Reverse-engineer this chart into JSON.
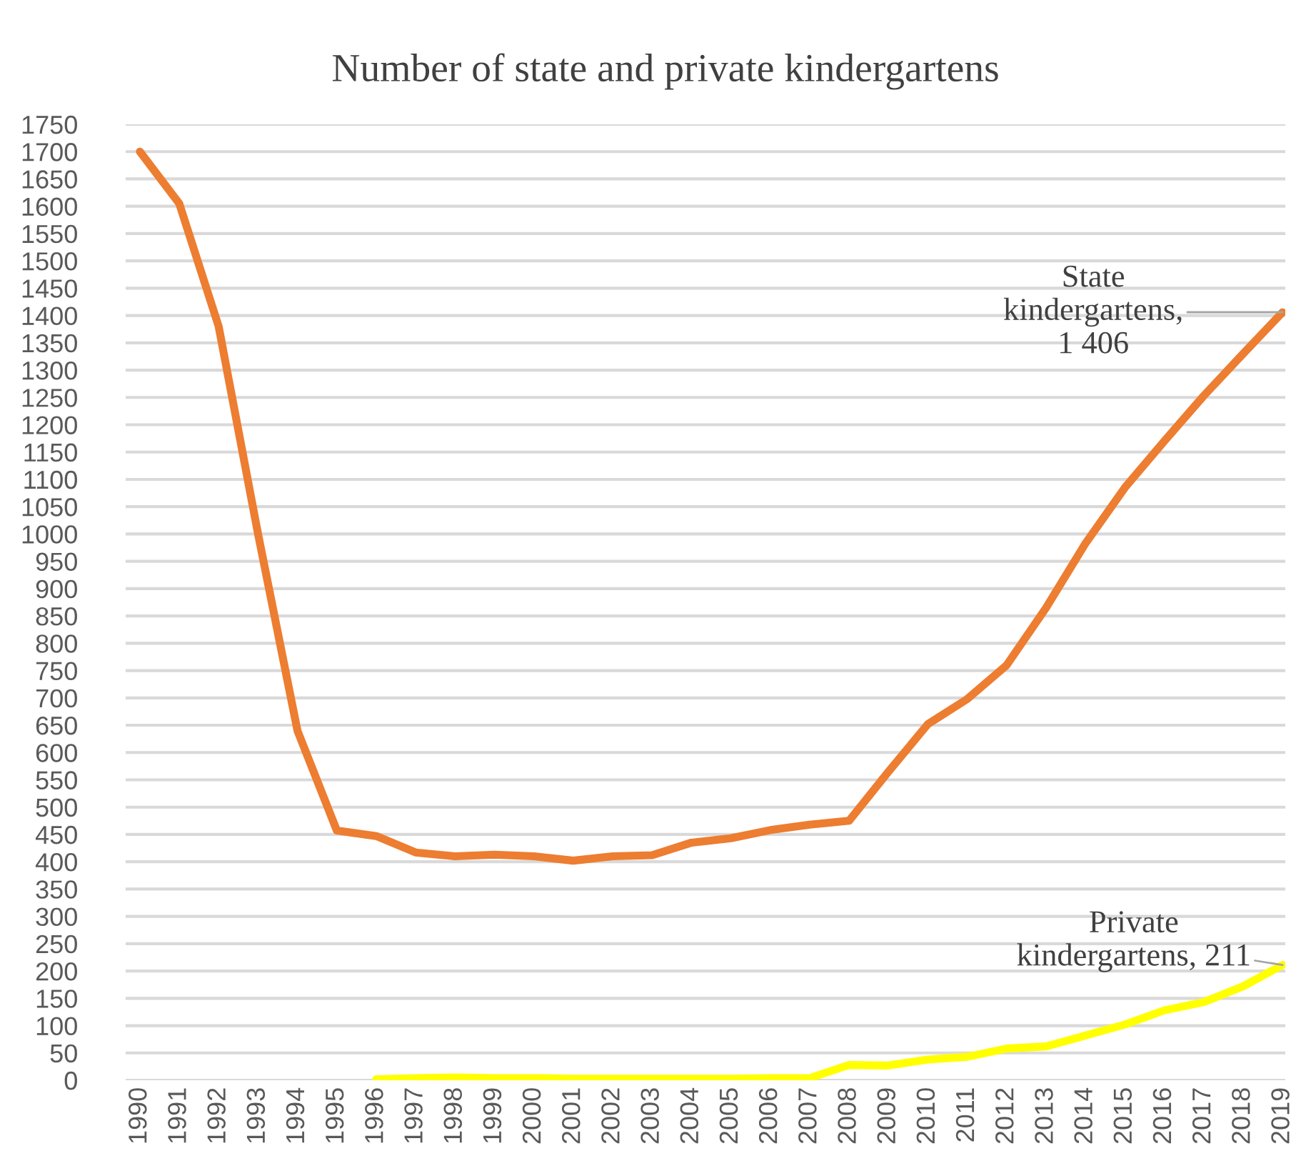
{
  "chart_data": {
    "type": "line",
    "title": "Number of state and private kindergartens",
    "categories": [
      "1990",
      "1991",
      "1992",
      "1993",
      "1994",
      "1995",
      "1996",
      "1997",
      "1998",
      "1999",
      "2000",
      "2001",
      "2002",
      "2003",
      "2004",
      "2005",
      "2006",
      "2007",
      "2008",
      "2009",
      "2010",
      "2011",
      "2012",
      "2013",
      "2014",
      "2015",
      "2016",
      "2017",
      "2018",
      "2019"
    ],
    "series": [
      {
        "color": "#ed7d31",
        "values": [
          1700,
          1605,
          1380,
          1000,
          640,
          457,
          447,
          417,
          410,
          413,
          410,
          402,
          410,
          412,
          435,
          443,
          458,
          468,
          475,
          565,
          652,
          698,
          760,
          865,
          983,
          1085,
          1170,
          1253,
          1330,
          1406
        ]
      },
      {
        "color": "#ffff00",
        "values": [
          null,
          null,
          null,
          null,
          null,
          null,
          2,
          4,
          5,
          4,
          4,
          3,
          3,
          3,
          3,
          3,
          4,
          4,
          28,
          27,
          38,
          43,
          58,
          62,
          82,
          102,
          128,
          143,
          172,
          211
        ]
      }
    ],
    "annotations": [
      {
        "text": "State\nkindergartens,\n1 406",
        "x": "2019",
        "y": 1406
      },
      {
        "text": "Private\nkindergartens, 211",
        "x": "2019",
        "y": 211
      }
    ],
    "ylim": [
      0,
      1750
    ],
    "yticks": [
      0,
      50,
      100,
      150,
      200,
      250,
      300,
      350,
      400,
      450,
      500,
      550,
      600,
      650,
      700,
      750,
      800,
      850,
      900,
      950,
      1000,
      1050,
      1100,
      1150,
      1200,
      1250,
      1300,
      1350,
      1400,
      1450,
      1500,
      1550,
      1600,
      1650,
      1700,
      1750
    ],
    "grid": "y",
    "marker": "none",
    "line_style": "solid"
  }
}
